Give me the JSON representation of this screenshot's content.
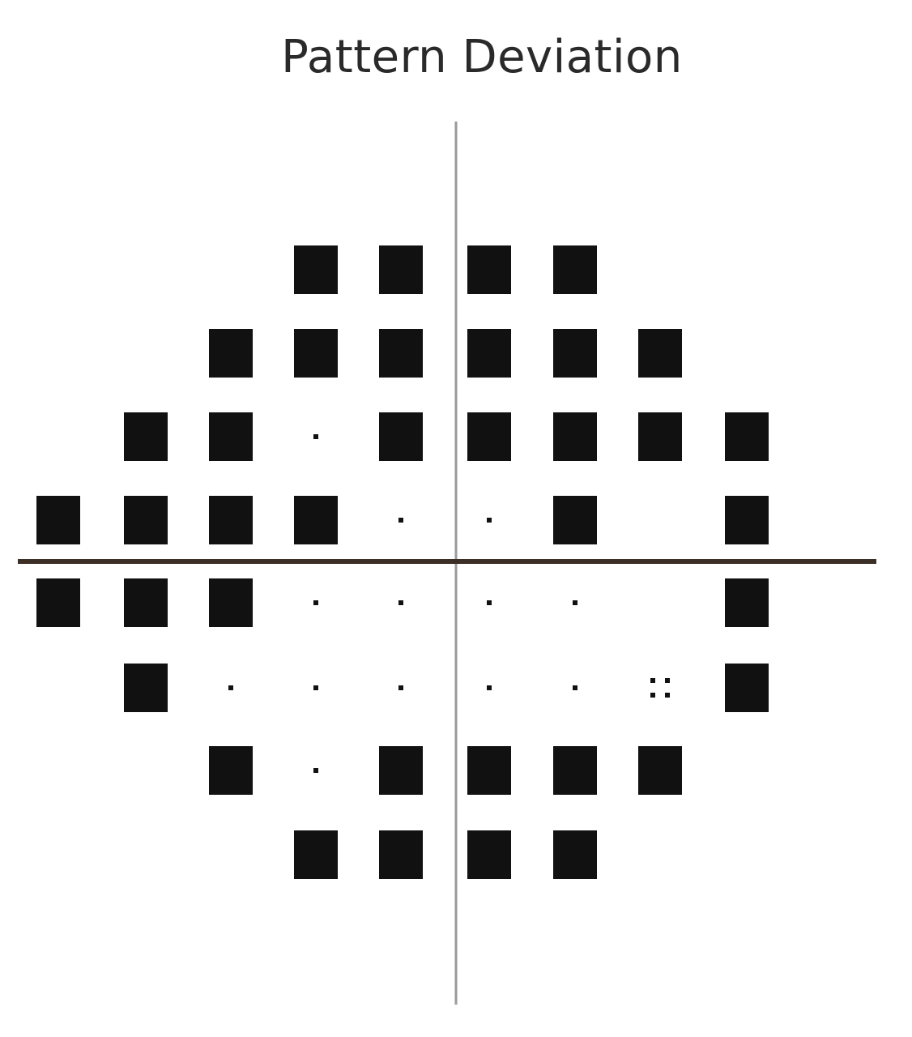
{
  "title": "Pattern Deviation",
  "chart_data": {
    "type": "symbol-grid",
    "title": "Pattern Deviation",
    "grid_columns": 10,
    "grid_rows": 8,
    "symbol_legend": {
      "full": "solid black square",
      "dot": "single dot",
      "quad": "four dots"
    },
    "rows": [
      [
        "",
        "",
        "",
        "full",
        "full",
        "full",
        "full",
        "",
        "",
        ""
      ],
      [
        "",
        "",
        "full",
        "full",
        "full",
        "full",
        "full",
        "full",
        "",
        ""
      ],
      [
        "",
        "full",
        "full",
        "dot",
        "full",
        "full",
        "full",
        "full",
        "full",
        ""
      ],
      [
        "full",
        "full",
        "full",
        "full",
        "dot",
        "dot",
        "full",
        "",
        "full",
        ""
      ],
      [
        "full",
        "full",
        "full",
        "dot",
        "dot",
        "dot",
        "dot",
        "",
        "full",
        ""
      ],
      [
        "",
        "full",
        "dot",
        "dot",
        "dot",
        "dot",
        "dot",
        "quad",
        "full",
        ""
      ],
      [
        "",
        "",
        "full",
        "dot",
        "full",
        "full",
        "full",
        "full",
        "",
        ""
      ],
      [
        "",
        "",
        "",
        "full",
        "full",
        "full",
        "full",
        "",
        "",
        ""
      ]
    ],
    "colors": {
      "symbol": "#111111",
      "vertical_axis": "#9a9a9a",
      "horizontal_axis": "#3b2f26"
    }
  }
}
